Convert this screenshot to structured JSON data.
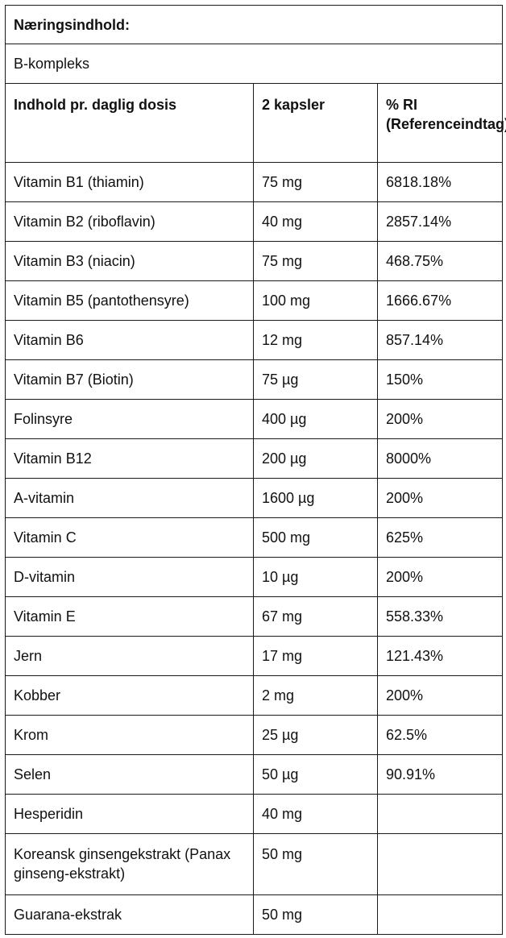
{
  "title": "Næringsindhold:",
  "subtitle": "B-kompleks",
  "headers": {
    "col1": "Indhold pr. daglig dosis",
    "col2": "2 kapsler",
    "col3": "% RI (Referenceindtag)"
  },
  "rows": [
    {
      "name": "Vitamin B1 (thiamin)",
      "amount": "75 mg",
      "ri": "6818.18%"
    },
    {
      "name": "Vitamin B2 (riboflavin)",
      "amount": "40 mg",
      "ri": "2857.14%"
    },
    {
      "name": "Vitamin B3 (niacin)",
      "amount": "75 mg",
      "ri": "468.75%"
    },
    {
      "name": "Vitamin B5 (pantothensyre)",
      "amount": "100 mg",
      "ri": "1666.67%"
    },
    {
      "name": "Vitamin B6",
      "amount": "12 mg",
      "ri": "857.14%"
    },
    {
      "name": "Vitamin B7 (Biotin)",
      "amount": "75 µg",
      "ri": "150%"
    },
    {
      "name": "Folinsyre",
      "amount": "400 µg",
      "ri": "200%"
    },
    {
      "name": "Vitamin B12",
      "amount": "200 µg",
      "ri": "8000%"
    },
    {
      "name": "A-vitamin",
      "amount": "1600 µg",
      "ri": "200%"
    },
    {
      "name": "Vitamin C",
      "amount": "500 mg",
      "ri": "625%"
    },
    {
      "name": "D-vitamin",
      "amount": "10 µg",
      "ri": "200%"
    },
    {
      "name": "Vitamin E",
      "amount": "67 mg",
      "ri": "558.33%"
    },
    {
      "name": "Jern",
      "amount": "17 mg",
      "ri": "121.43%"
    },
    {
      "name": "Kobber",
      "amount": "2 mg",
      "ri": "200%"
    },
    {
      "name": "Krom",
      "amount": "25 µg",
      "ri": "62.5%"
    },
    {
      "name": "Selen",
      "amount": "50 µg",
      "ri": "90.91%"
    },
    {
      "name": "Hesperidin",
      "amount": "40 mg",
      "ri": ""
    },
    {
      "name": "Koreansk ginsengekstrakt (Panax ginseng-ekstrakt)",
      "amount": "50 mg",
      "ri": "",
      "tall": true
    },
    {
      "name": "Guarana-ekstrak",
      "amount": "50 mg",
      "ri": ""
    }
  ]
}
